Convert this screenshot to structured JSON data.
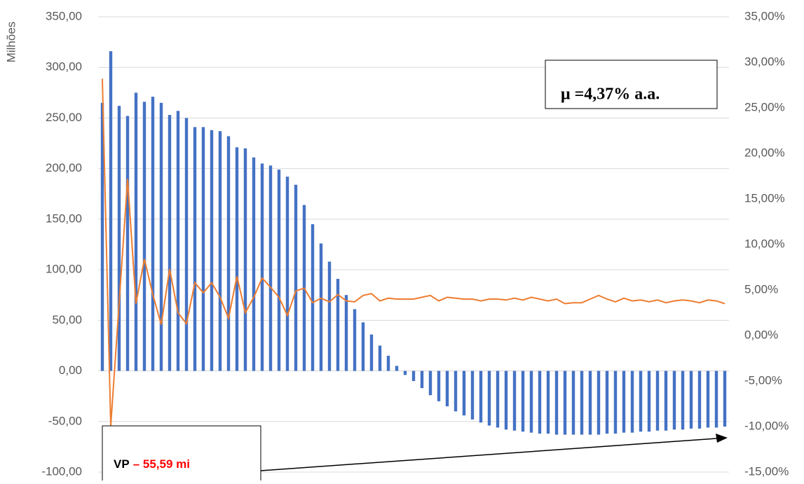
{
  "chart_data": {
    "type": "bar-line",
    "y_label": "Milhões",
    "categories": [
      null,
      null,
      null,
      null,
      null,
      null,
      null,
      null,
      null,
      null,
      null,
      null,
      null,
      null,
      null,
      null,
      null,
      null,
      null,
      null,
      null,
      null,
      null,
      null,
      null,
      null,
      null,
      null,
      null,
      null,
      null,
      null,
      null,
      null,
      null,
      null,
      null,
      null,
      null,
      null,
      null,
      null,
      null,
      null,
      null,
      null,
      null,
      null,
      null,
      null,
      null,
      null,
      null,
      null,
      null,
      null,
      null,
      null,
      null,
      null,
      null,
      null,
      null,
      null,
      null,
      null,
      null,
      null,
      null,
      null,
      null,
      null,
      null,
      null,
      null
    ],
    "series": [
      {
        "type": "bar",
        "color": "#4472c4",
        "values": [
          265,
          316,
          262,
          252,
          275,
          266,
          271,
          265,
          253,
          257,
          250,
          241,
          241,
          238,
          237,
          232,
          221,
          220,
          211,
          205,
          203,
          199,
          192,
          184,
          164,
          145,
          126,
          108,
          91,
          75,
          61,
          48,
          36,
          25,
          15,
          5,
          -4,
          -10,
          -17,
          -24,
          -30,
          -35,
          -40,
          -44,
          -48,
          -51,
          -54,
          -56,
          -58,
          -59,
          -60,
          -61,
          -62,
          -62,
          -63,
          -63,
          -63,
          -63,
          -63,
          -63,
          -62,
          -62,
          -61,
          -61,
          -60,
          -60,
          -59,
          -59,
          -58,
          -58,
          -57,
          -57,
          -56,
          -56,
          -55
        ]
      },
      {
        "type": "line",
        "axis": "y2",
        "color": "#ed7d31",
        "values": [
          28.2,
          -9.9,
          3.6,
          17.2,
          3.5,
          8.4,
          4.5,
          1.2,
          7.3,
          2.5,
          1.3,
          5.8,
          4.7,
          5.8,
          4.2,
          1.9,
          6.5,
          2.5,
          4.2,
          6.3,
          5.3,
          4.2,
          2.2,
          4.9,
          5.2,
          3.6,
          4.1,
          3.7,
          4.5,
          3.8,
          3.7,
          4.4,
          4.6,
          3.8,
          4.1,
          4.0,
          4.0,
          4.0,
          4.2,
          4.4,
          3.8,
          4.2,
          4.1,
          4.0,
          4.0,
          3.8,
          4.0,
          4.0,
          3.9,
          4.1,
          3.9,
          4.2,
          4.0,
          3.8,
          4.0,
          3.5,
          3.6,
          3.6,
          4.0,
          4.4,
          4.0,
          3.7,
          4.1,
          3.8,
          3.9,
          3.7,
          3.9,
          3.6,
          3.8,
          3.9,
          3.8,
          3.6,
          3.9,
          3.8,
          3.5
        ]
      }
    ],
    "ylim": [
      -100,
      350
    ],
    "yticks": [
      {
        "value": 350,
        "label": "350,00"
      },
      {
        "value": 300,
        "label": "300,00"
      },
      {
        "value": 250,
        "label": "250,00"
      },
      {
        "value": 200,
        "label": "200,00"
      },
      {
        "value": 150,
        "label": "150,00"
      },
      {
        "value": 100,
        "label": "100,00"
      },
      {
        "value": 50,
        "label": "50,00"
      },
      {
        "value": 0,
        "label": "0,00"
      },
      {
        "value": -50,
        "label": "-50,00"
      },
      {
        "value": -100,
        "label": "-100,00"
      }
    ],
    "y2lim": [
      -15,
      35
    ],
    "y2ticks": [
      {
        "value": 35,
        "label": "35,00%"
      },
      {
        "value": 30,
        "label": "30,00%"
      },
      {
        "value": 25,
        "label": "25,00%"
      },
      {
        "value": 20,
        "label": "20,00%"
      },
      {
        "value": 15,
        "label": "15,00%"
      },
      {
        "value": 10,
        "label": "10,00%"
      },
      {
        "value": 5,
        "label": "5,00%"
      },
      {
        "value": 0,
        "label": "0,00%"
      },
      {
        "value": -5,
        "label": "-5,00%"
      },
      {
        "value": -10,
        "label": "-10,00%"
      },
      {
        "value": -15,
        "label": "-15,00%"
      }
    ],
    "grid": true,
    "annotations": [
      {
        "text": "μ =4,37% a.a."
      },
      {
        "parts": [
          "VP",
          "– 55,59 mi"
        ]
      }
    ]
  }
}
